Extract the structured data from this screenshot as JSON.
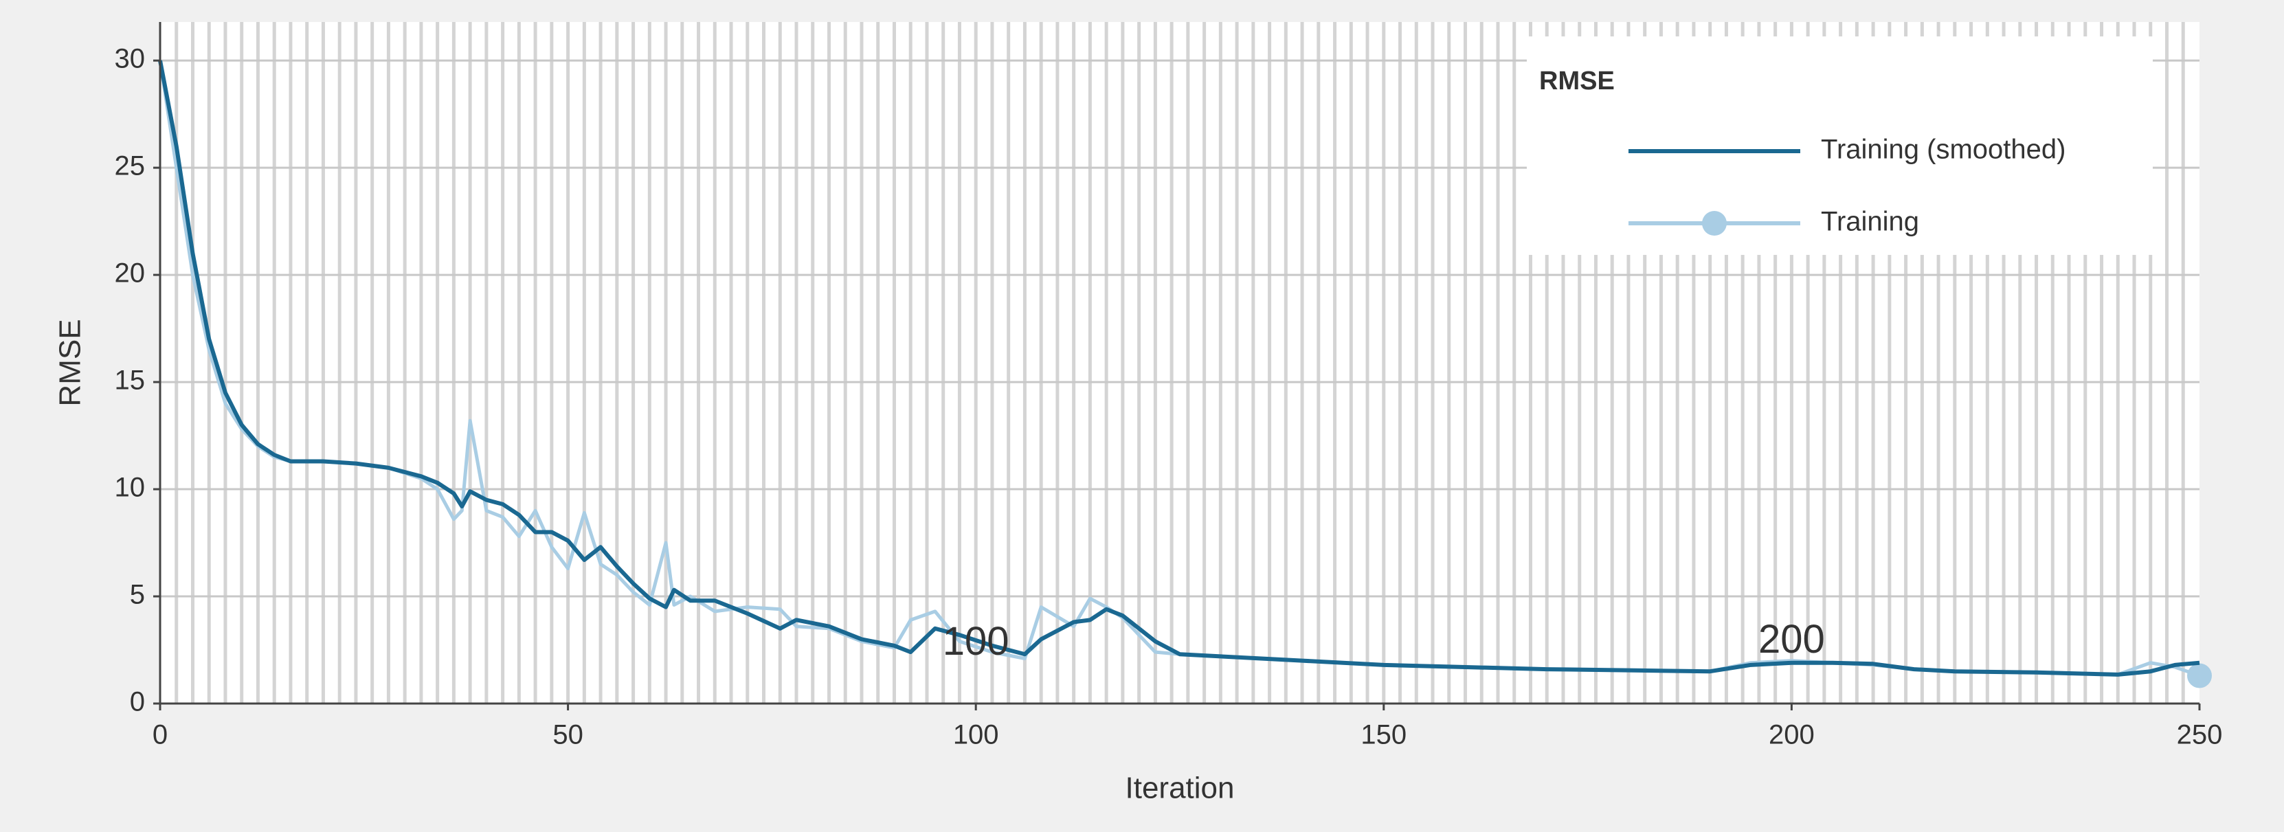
{
  "chart_data": {
    "type": "line",
    "x_label": "Iteration",
    "y_label": "RMSE",
    "legend_title": "RMSE",
    "legend_position": "upper right",
    "grid": true,
    "xlim": [
      0,
      250
    ],
    "xticks": [
      0,
      50,
      100,
      150,
      200,
      250
    ],
    "ylim": [
      0,
      31.8
    ],
    "yticks": [
      0,
      5,
      10,
      15,
      20,
      25,
      30
    ],
    "x": [
      0,
      2,
      4,
      6,
      8,
      10,
      12,
      14,
      16,
      20,
      24,
      28,
      32,
      34,
      36,
      37,
      38,
      40,
      42,
      44,
      46,
      48,
      50,
      52,
      54,
      56,
      58,
      60,
      62,
      63,
      65,
      68,
      72,
      76,
      78,
      82,
      86,
      90,
      92,
      95,
      98,
      102,
      106,
      108,
      112,
      114,
      116,
      118,
      122,
      125,
      130,
      140,
      150,
      160,
      170,
      180,
      190,
      195,
      200,
      205,
      210,
      215,
      220,
      230,
      240,
      244,
      247,
      250
    ],
    "series": [
      {
        "name": "Training (smoothed)",
        "color": "#1a6891",
        "values": [
          30,
          26,
          21,
          17,
          14.5,
          13,
          12.1,
          11.6,
          11.3,
          11.3,
          11.2,
          11.0,
          10.6,
          10.3,
          9.8,
          9.2,
          9.9,
          9.5,
          9.3,
          8.8,
          8.0,
          8.0,
          7.6,
          6.7,
          7.3,
          6.4,
          5.6,
          4.9,
          4.5,
          5.3,
          4.8,
          4.8,
          4.2,
          3.5,
          3.9,
          3.6,
          3.0,
          2.7,
          2.4,
          3.5,
          3.2,
          2.7,
          2.3,
          3.0,
          3.8,
          3.9,
          4.4,
          4.1,
          2.9,
          2.3,
          2.2,
          2.0,
          1.8,
          1.7,
          1.6,
          1.55,
          1.5,
          1.8,
          1.9,
          1.9,
          1.85,
          1.6,
          1.5,
          1.45,
          1.35,
          1.5,
          1.8,
          1.9
        ]
      },
      {
        "name": "Training",
        "color": "#a9cde4",
        "values": [
          30,
          25,
          20,
          16.5,
          14,
          12.8,
          12,
          11.5,
          11.3,
          11.3,
          11.2,
          11,
          10.5,
          10,
          8.6,
          9.0,
          13.2,
          9,
          8.7,
          7.8,
          9.0,
          7.3,
          6.3,
          8.9,
          6.5,
          6.0,
          5.2,
          4.6,
          7.5,
          4.6,
          5.0,
          4.3,
          4.5,
          4.4,
          3.6,
          3.5,
          2.9,
          2.6,
          3.9,
          4.3,
          2.9,
          2.4,
          2.1,
          4.5,
          3.6,
          4.9,
          4.5,
          4.0,
          2.4,
          2.3,
          2.2,
          2.0,
          1.8,
          1.7,
          1.6,
          1.55,
          1.5,
          1.9,
          2.0,
          1.9,
          1.8,
          1.6,
          1.5,
          1.45,
          1.35,
          1.9,
          1.7,
          1.3
        ]
      }
    ],
    "annotations": [
      {
        "text": "100",
        "x": 100,
        "y": 1.8
      },
      {
        "text": "200",
        "x": 200,
        "y": 1.9
      }
    ]
  }
}
